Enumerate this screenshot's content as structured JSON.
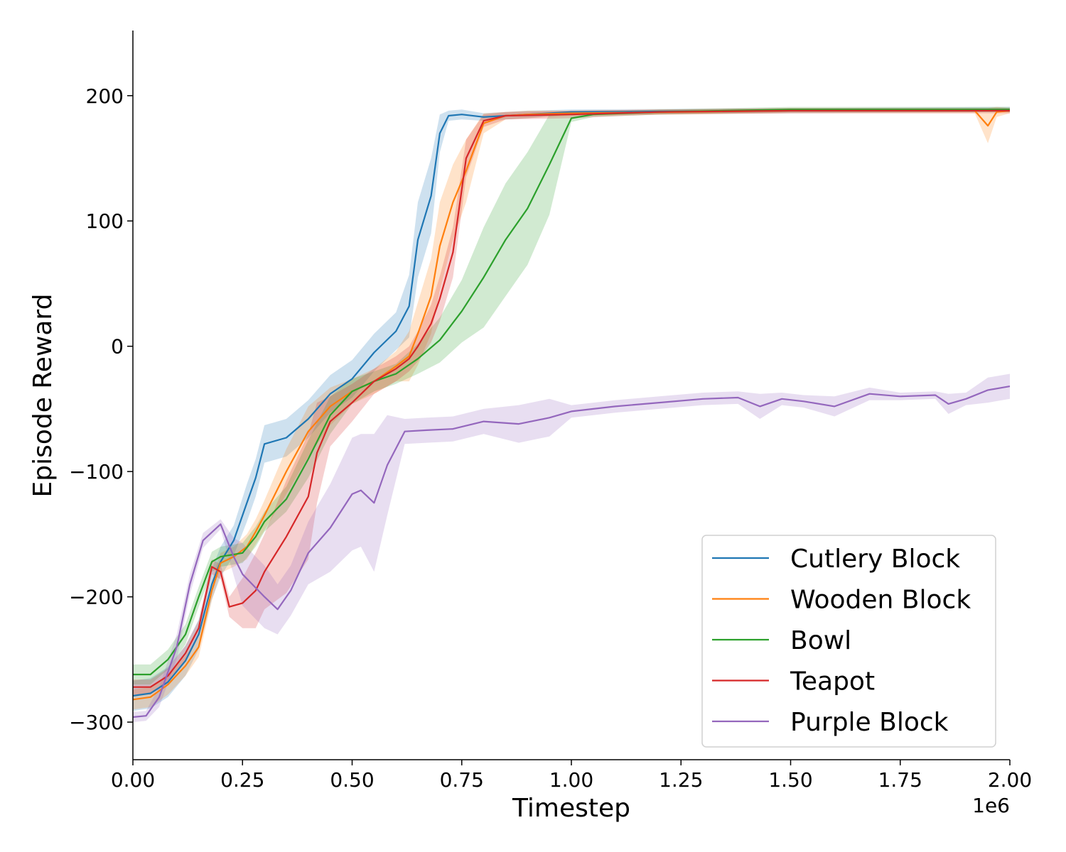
{
  "chart_data": {
    "type": "line",
    "xlabel": "Timestep",
    "ylabel": "Episode Reward",
    "x_multiplier_label": "1e6",
    "xlim": [
      0,
      2.0
    ],
    "ylim": [
      -330,
      252
    ],
    "x_ticks": [
      0.0,
      0.25,
      0.5,
      0.75,
      1.0,
      1.25,
      1.5,
      1.75,
      2.0
    ],
    "x_tick_labels": [
      "0.00",
      "0.25",
      "0.50",
      "0.75",
      "1.00",
      "1.25",
      "1.50",
      "1.75",
      "2.00"
    ],
    "y_ticks": [
      -300,
      -200,
      -100,
      0,
      100,
      200
    ],
    "y_tick_labels": [
      "−300",
      "−200",
      "−100",
      "0",
      "100",
      "200"
    ],
    "grid": false,
    "legend_position": "lower-right",
    "series": [
      {
        "name": "Cutlery Block",
        "color": "#1f77b4",
        "points": [
          [
            0,
            -279
          ],
          [
            0.04,
            -277
          ],
          [
            0.08,
            -268
          ],
          [
            0.12,
            -251
          ],
          [
            0.15,
            -230
          ],
          [
            0.18,
            -190
          ],
          [
            0.2,
            -172
          ],
          [
            0.23,
            -155
          ],
          [
            0.26,
            -125
          ],
          [
            0.28,
            -105
          ],
          [
            0.3,
            -78
          ],
          [
            0.35,
            -73
          ],
          [
            0.4,
            -58
          ],
          [
            0.45,
            -38
          ],
          [
            0.5,
            -26
          ],
          [
            0.55,
            -5
          ],
          [
            0.6,
            12
          ],
          [
            0.63,
            32
          ],
          [
            0.65,
            85
          ],
          [
            0.68,
            120
          ],
          [
            0.7,
            170
          ],
          [
            0.72,
            184
          ],
          [
            0.75,
            185
          ],
          [
            0.8,
            183
          ],
          [
            0.85,
            184
          ],
          [
            0.9,
            185
          ],
          [
            1.0,
            187
          ],
          [
            1.5,
            188
          ],
          [
            2.0,
            189
          ]
        ],
        "band": [
          12,
          12,
          12,
          12,
          12,
          12,
          12,
          12,
          15,
          15,
          15,
          15,
          15,
          15,
          15,
          15,
          15,
          25,
          30,
          30,
          15,
          4,
          4,
          3,
          3,
          3,
          2,
          2,
          2
        ]
      },
      {
        "name": "Wooden Block",
        "color": "#ff7f0e",
        "points": [
          [
            0,
            -282
          ],
          [
            0.04,
            -280
          ],
          [
            0.08,
            -270
          ],
          [
            0.12,
            -255
          ],
          [
            0.15,
            -240
          ],
          [
            0.18,
            -195
          ],
          [
            0.2,
            -173
          ],
          [
            0.23,
            -168
          ],
          [
            0.26,
            -160
          ],
          [
            0.28,
            -148
          ],
          [
            0.3,
            -135
          ],
          [
            0.35,
            -100
          ],
          [
            0.4,
            -68
          ],
          [
            0.45,
            -48
          ],
          [
            0.5,
            -36
          ],
          [
            0.55,
            -28
          ],
          [
            0.6,
            -16
          ],
          [
            0.63,
            -8
          ],
          [
            0.65,
            10
          ],
          [
            0.68,
            40
          ],
          [
            0.7,
            80
          ],
          [
            0.73,
            115
          ],
          [
            0.76,
            140
          ],
          [
            0.8,
            178
          ],
          [
            0.85,
            184
          ],
          [
            0.9,
            185
          ],
          [
            1.0,
            186
          ],
          [
            1.5,
            188
          ],
          [
            1.92,
            188
          ],
          [
            1.95,
            176
          ],
          [
            1.97,
            187
          ],
          [
            2.0,
            188
          ]
        ],
        "band": [
          8,
          8,
          8,
          8,
          8,
          8,
          8,
          8,
          10,
          10,
          12,
          18,
          20,
          15,
          10,
          10,
          12,
          20,
          25,
          30,
          35,
          30,
          25,
          8,
          3,
          3,
          2,
          2,
          2,
          14,
          4,
          2
        ]
      },
      {
        "name": "Bowl",
        "color": "#2ca02c",
        "points": [
          [
            0,
            -262
          ],
          [
            0.04,
            -262
          ],
          [
            0.08,
            -250
          ],
          [
            0.12,
            -230
          ],
          [
            0.15,
            -200
          ],
          [
            0.18,
            -172
          ],
          [
            0.2,
            -168
          ],
          [
            0.25,
            -165
          ],
          [
            0.28,
            -152
          ],
          [
            0.3,
            -140
          ],
          [
            0.35,
            -122
          ],
          [
            0.4,
            -90
          ],
          [
            0.45,
            -55
          ],
          [
            0.5,
            -36
          ],
          [
            0.55,
            -28
          ],
          [
            0.6,
            -22
          ],
          [
            0.65,
            -10
          ],
          [
            0.7,
            5
          ],
          [
            0.75,
            28
          ],
          [
            0.8,
            55
          ],
          [
            0.85,
            85
          ],
          [
            0.9,
            110
          ],
          [
            0.95,
            145
          ],
          [
            1.0,
            182
          ],
          [
            1.05,
            185
          ],
          [
            1.2,
            187
          ],
          [
            1.5,
            189
          ],
          [
            2.0,
            189
          ]
        ],
        "band": [
          8,
          8,
          8,
          8,
          8,
          8,
          8,
          8,
          8,
          8,
          10,
          15,
          15,
          10,
          8,
          8,
          12,
          18,
          25,
          40,
          45,
          45,
          40,
          3,
          2,
          2,
          2,
          2
        ]
      },
      {
        "name": "Teapot",
        "color": "#d62728",
        "points": [
          [
            0,
            -272
          ],
          [
            0.04,
            -272
          ],
          [
            0.08,
            -263
          ],
          [
            0.12,
            -245
          ],
          [
            0.15,
            -225
          ],
          [
            0.18,
            -176
          ],
          [
            0.2,
            -180
          ],
          [
            0.22,
            -208
          ],
          [
            0.25,
            -205
          ],
          [
            0.28,
            -195
          ],
          [
            0.3,
            -180
          ],
          [
            0.35,
            -152
          ],
          [
            0.4,
            -120
          ],
          [
            0.42,
            -85
          ],
          [
            0.45,
            -60
          ],
          [
            0.5,
            -45
          ],
          [
            0.55,
            -28
          ],
          [
            0.6,
            -18
          ],
          [
            0.63,
            -10
          ],
          [
            0.65,
            0
          ],
          [
            0.68,
            18
          ],
          [
            0.7,
            38
          ],
          [
            0.73,
            75
          ],
          [
            0.76,
            150
          ],
          [
            0.8,
            180
          ],
          [
            0.85,
            184
          ],
          [
            1.0,
            185
          ],
          [
            1.2,
            187
          ],
          [
            1.5,
            188
          ],
          [
            2.0,
            188
          ]
        ],
        "band": [
          6,
          6,
          6,
          6,
          6,
          6,
          6,
          8,
          20,
          30,
          30,
          45,
          50,
          40,
          20,
          15,
          10,
          10,
          10,
          12,
          15,
          18,
          20,
          15,
          5,
          3,
          3,
          2,
          2,
          2
        ]
      },
      {
        "name": "Purple Block",
        "color": "#9467bd",
        "points": [
          [
            0,
            -296
          ],
          [
            0.03,
            -295
          ],
          [
            0.06,
            -280
          ],
          [
            0.1,
            -240
          ],
          [
            0.13,
            -190
          ],
          [
            0.16,
            -155
          ],
          [
            0.2,
            -142
          ],
          [
            0.23,
            -168
          ],
          [
            0.25,
            -182
          ],
          [
            0.3,
            -200
          ],
          [
            0.33,
            -210
          ],
          [
            0.36,
            -195
          ],
          [
            0.4,
            -165
          ],
          [
            0.45,
            -145
          ],
          [
            0.5,
            -118
          ],
          [
            0.52,
            -115
          ],
          [
            0.55,
            -125
          ],
          [
            0.58,
            -95
          ],
          [
            0.62,
            -68
          ],
          [
            0.67,
            -67
          ],
          [
            0.73,
            -66
          ],
          [
            0.8,
            -60
          ],
          [
            0.88,
            -62
          ],
          [
            0.95,
            -57
          ],
          [
            1.0,
            -52
          ],
          [
            1.1,
            -48
          ],
          [
            1.2,
            -45
          ],
          [
            1.3,
            -42
          ],
          [
            1.38,
            -41
          ],
          [
            1.43,
            -48
          ],
          [
            1.48,
            -42
          ],
          [
            1.53,
            -44
          ],
          [
            1.6,
            -48
          ],
          [
            1.68,
            -38
          ],
          [
            1.75,
            -40
          ],
          [
            1.83,
            -39
          ],
          [
            1.86,
            -46
          ],
          [
            1.9,
            -42
          ],
          [
            1.95,
            -35
          ],
          [
            2.0,
            -32
          ]
        ],
        "band": [
          4,
          4,
          8,
          10,
          8,
          6,
          4,
          15,
          25,
          25,
          20,
          20,
          25,
          35,
          45,
          45,
          55,
          40,
          10,
          10,
          10,
          10,
          15,
          15,
          5,
          5,
          5,
          5,
          5,
          10,
          5,
          5,
          8,
          5,
          3,
          3,
          8,
          5,
          10,
          10
        ]
      }
    ]
  }
}
